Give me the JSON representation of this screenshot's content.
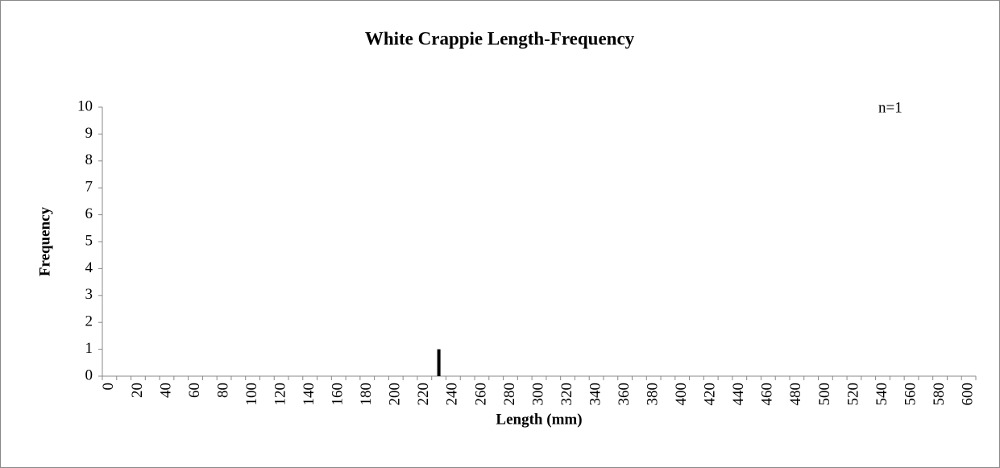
{
  "chart_data": {
    "type": "bar",
    "title": "White Crappie Length-Frequency",
    "x_label": "Length (mm)",
    "y_label": "Frequency",
    "annotation": "n=1",
    "categories": [
      0,
      null,
      20,
      null,
      40,
      null,
      60,
      null,
      80,
      null,
      100,
      null,
      120,
      null,
      140,
      null,
      160,
      null,
      180,
      null,
      200,
      null,
      220,
      null,
      240,
      null,
      260,
      null,
      280,
      null,
      300,
      null,
      320,
      null,
      340,
      null,
      360,
      null,
      380,
      null,
      400,
      null,
      420,
      null,
      440,
      null,
      460,
      null,
      480,
      null,
      500,
      null,
      520,
      null,
      540,
      null,
      560,
      null,
      580,
      null,
      600
    ],
    "values": [
      0,
      0,
      0,
      0,
      0,
      0,
      0,
      0,
      0,
      0,
      0,
      0,
      0,
      0,
      0,
      0,
      0,
      0,
      0,
      0,
      0,
      0,
      0,
      1,
      0,
      0,
      0,
      0,
      0,
      0,
      0,
      0,
      0,
      0,
      0,
      0,
      0,
      0,
      0,
      0,
      0,
      0,
      0,
      0,
      0,
      0,
      0,
      0,
      0,
      0,
      0,
      0,
      0,
      0,
      0,
      0,
      0,
      0,
      0,
      0,
      0
    ],
    "color": "#000000",
    "ylim": [
      0,
      10
    ],
    "yticks": [
      0,
      1,
      2,
      3,
      4,
      5,
      6,
      7,
      8,
      9,
      10
    ],
    "grid": false
  }
}
